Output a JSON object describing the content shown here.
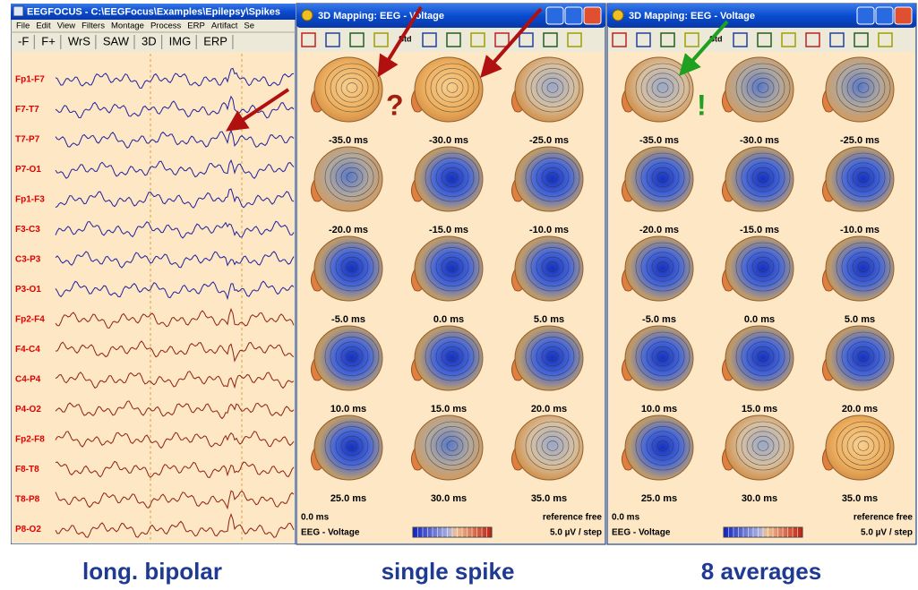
{
  "left_window": {
    "title": "EEGFOCUS - C:\\EEGFocus\\Examples\\Epilepsy\\Spikes",
    "menu": [
      "File",
      "Edit",
      "View",
      "Filters",
      "Montage",
      "Process",
      "ERP",
      "Artifact",
      "Se"
    ],
    "toolbar": [
      "-F",
      "F+",
      "WrS",
      "SAW",
      "3D",
      "IMG",
      "ERP"
    ],
    "channels": [
      "Fp1-F7",
      "F7-T7",
      "T7-P7",
      "P7-O1",
      "Fp1-F3",
      "F3-C3",
      "C3-P3",
      "P3-O1",
      "Fp2-F4",
      "F4-C4",
      "C4-P4",
      "P4-O2",
      "Fp2-F8",
      "F8-T8",
      "T8-P8",
      "P8-O2"
    ]
  },
  "map_windows": [
    {
      "title": "3D Mapping: EEG - Voltage",
      "toolbar_label": "Std",
      "frames": [
        "-35.0 ms",
        "-30.0 ms",
        "-25.0 ms",
        "-20.0 ms",
        "-15.0 ms",
        "-10.0 ms",
        "-5.0 ms",
        "0.0 ms",
        "5.0 ms",
        "10.0 ms",
        "15.0 ms",
        "20.0 ms",
        "25.0 ms",
        "30.0 ms",
        "35.0 ms"
      ],
      "annotation": "?",
      "footer": {
        "time": "0.0 ms",
        "reference": "reference free",
        "mode": "EEG - Voltage",
        "scale": "5.0 µV / step"
      }
    },
    {
      "title": "3D Mapping: EEG - Voltage",
      "toolbar_label": "Std",
      "frames": [
        "-35.0 ms",
        "-30.0 ms",
        "-25.0 ms",
        "-20.0 ms",
        "-15.0 ms",
        "-10.0 ms",
        "-5.0 ms",
        "0.0 ms",
        "5.0 ms",
        "10.0 ms",
        "15.0 ms",
        "20.0 ms",
        "25.0 ms",
        "30.0 ms",
        "35.0 ms"
      ],
      "annotation": "!",
      "footer": {
        "time": "0.0 ms",
        "reference": "reference free",
        "mode": "EEG - Voltage",
        "scale": "5.0 µV / step"
      }
    }
  ],
  "captions": [
    "long. bipolar",
    "single spike",
    "8 averages"
  ]
}
